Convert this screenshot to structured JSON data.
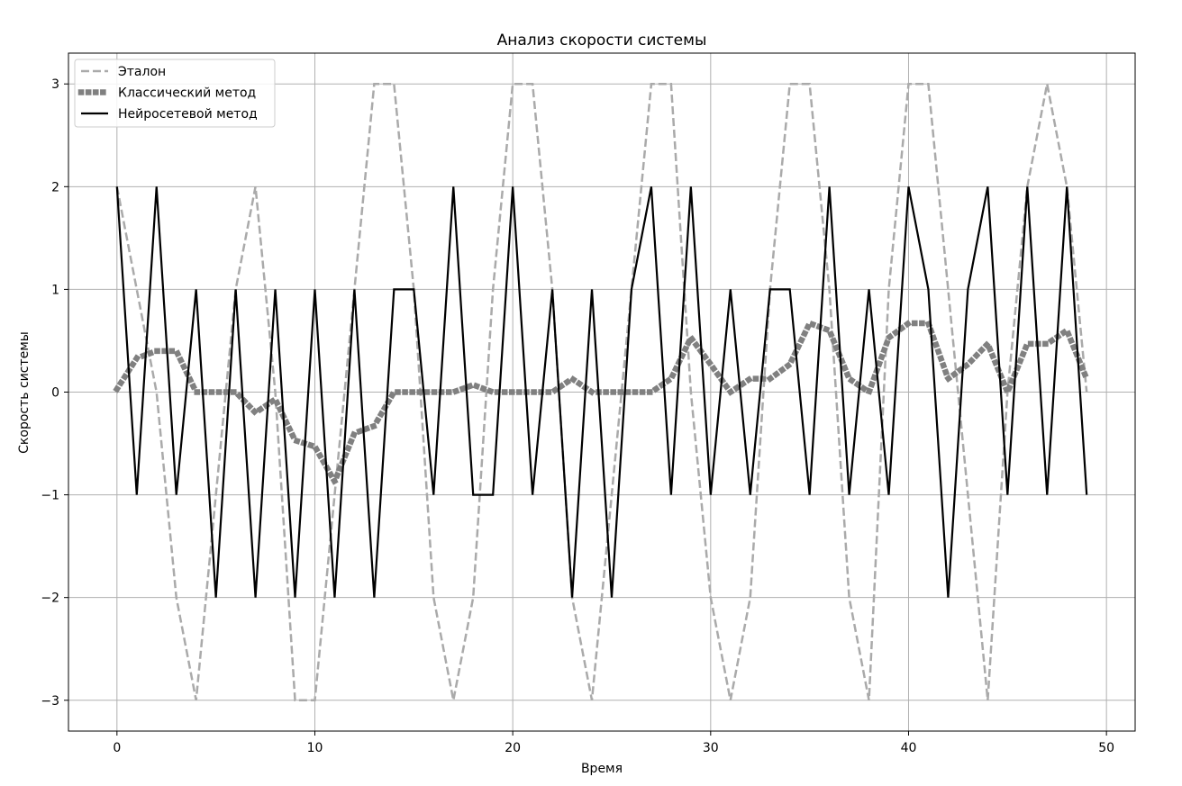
{
  "chart_data": {
    "type": "line",
    "title": "Анализ скорости системы",
    "xlabel": "Время",
    "ylabel": "Скорость системы",
    "xlim": [
      -2.45,
      51.45
    ],
    "ylim": [
      -3.3,
      3.3
    ],
    "xticks": [
      0,
      10,
      20,
      30,
      40,
      50
    ],
    "yticks": [
      -3,
      -2,
      -1,
      0,
      1,
      2,
      3
    ],
    "xtick_labels": [
      "0",
      "10",
      "20",
      "30",
      "40",
      "50"
    ],
    "ytick_labels": [
      "−3",
      "−2",
      "−1",
      "0",
      "1",
      "2",
      "3"
    ],
    "grid": true,
    "legend_position": "top-left",
    "x": [
      0,
      1,
      2,
      3,
      4,
      5,
      6,
      7,
      8,
      9,
      10,
      11,
      12,
      13,
      14,
      15,
      16,
      17,
      18,
      19,
      20,
      21,
      22,
      23,
      24,
      25,
      26,
      27,
      28,
      29,
      30,
      31,
      32,
      33,
      34,
      35,
      36,
      37,
      38,
      39,
      40,
      41,
      42,
      43,
      44,
      45,
      46,
      47,
      48,
      49
    ],
    "series": [
      {
        "name": "Эталон",
        "style": "dashed",
        "color": "#aaaaaa",
        "values": [
          2,
          1,
          0,
          -2,
          -3,
          -1,
          1,
          2,
          0,
          -3,
          -3,
          -1,
          1,
          3,
          3,
          1,
          -2,
          -3,
          -2,
          1,
          3,
          3,
          1,
          -2,
          -3,
          -1,
          1,
          3,
          3,
          0,
          -2,
          -3,
          -2,
          1,
          3,
          3,
          1,
          -2,
          -3,
          1,
          3,
          3,
          1,
          -1,
          -3,
          0,
          2,
          3,
          2,
          0
        ]
      },
      {
        "name": "Классический метод",
        "style": "dotted",
        "color": "#808080",
        "values": [
          0.03,
          0.33,
          0.4,
          0.4,
          0.0,
          0.0,
          0.0,
          -0.2,
          -0.07,
          -0.47,
          -0.53,
          -0.87,
          -0.4,
          -0.33,
          0.0,
          0.0,
          0.0,
          0.0,
          0.07,
          0.0,
          0.0,
          0.0,
          0.0,
          0.13,
          0.0,
          0.0,
          0.0,
          0.0,
          0.13,
          0.53,
          0.27,
          0.0,
          0.13,
          0.13,
          0.27,
          0.67,
          0.6,
          0.13,
          0.0,
          0.53,
          0.67,
          0.67,
          0.13,
          0.27,
          0.47,
          0.0,
          0.47,
          0.47,
          0.6,
          0.13
        ]
      },
      {
        "name": "Нейросетевой метод",
        "style": "solid",
        "color": "#000000",
        "values": [
          2,
          -1,
          2,
          -1,
          1,
          -2,
          1,
          -2,
          1,
          -2,
          1,
          -2,
          1,
          -2,
          1,
          1,
          -1,
          2,
          -1,
          -1,
          2,
          -1,
          1,
          -2,
          1,
          -2,
          1,
          2,
          -1,
          2,
          -1,
          1,
          -1,
          1,
          1,
          -1,
          2,
          -1,
          1,
          -1,
          2,
          1,
          -2,
          1,
          2,
          -1,
          2,
          -1,
          2,
          -1
        ]
      }
    ]
  }
}
